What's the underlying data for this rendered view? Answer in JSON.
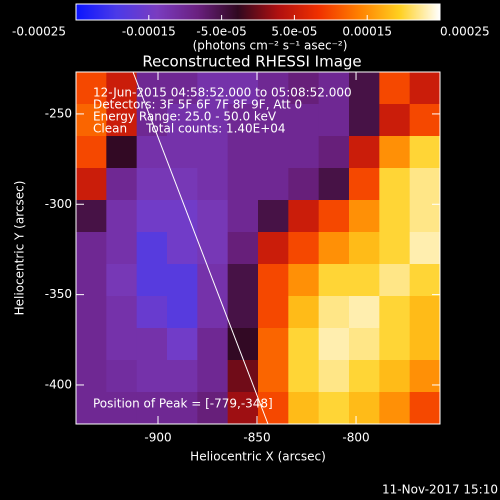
{
  "chart_data": {
    "type": "heatmap",
    "title": "Reconstructed RHESSI Image",
    "colorbar_label": "(photons cm⁻² s⁻¹ asec⁻²)",
    "x_label": "Heliocentric X (arcsec)",
    "y_label": "Heliocentric Y (arcsec)",
    "annotations": [
      "12-Jun-2015 04:58:52.000 to 05:08:52.000",
      "Detectors: 3F 5F 6F 7F 8F 9F, Att 0",
      "Energy Range: 25.0 - 50.0 keV",
      "Clean     Total counts: 1.40E+04"
    ],
    "peak_label": "Position of Peak = [-779,-348]",
    "timestamp": "11-Nov-2017 15:10",
    "xlim": [
      -941.4,
      -757.6
    ],
    "ylim": [
      -421.6,
      -226.8
    ],
    "xticks": [
      -900,
      -850,
      -800
    ],
    "yticks": [
      -250,
      -300,
      -350,
      -400
    ],
    "zlim": [
      -0.00025,
      0.00025
    ],
    "zticks": [
      -0.00025,
      -0.00015,
      {
        "value": -5e-05,
        "label": "-5.0e-05"
      },
      {
        "value": 5e-05,
        "label": "5.0e-05"
      },
      0.00015,
      0.00025
    ],
    "colormap": [
      "#0a14ff",
      "#4b3ae8",
      "#7a3cc0",
      "#6a2080",
      "#300820",
      "#b01010",
      "#f03000",
      "#ff8000",
      "#ffd020",
      "#ffffff"
    ],
    "z": [
      [
        0.0001,
        5e-05,
        -0.0001,
        -0.0001,
        -0.00012,
        -0.00012,
        -0.0001,
        -8e-05,
        -0.0001,
        -5e-05,
        0.0001,
        5e-05
      ],
      [
        0.00012,
        5e-05,
        -0.0001,
        -0.00012,
        -0.00012,
        -0.0001,
        -0.0001,
        -0.0001,
        -0.0001,
        -5e-05,
        5e-05,
        0.0001
      ],
      [
        0.0001,
        -3e-05,
        -0.00012,
        -0.00012,
        -0.00012,
        -0.0001,
        -0.0001,
        -0.0001,
        -8e-05,
        5e-05,
        0.00015,
        0.0002
      ],
      [
        5e-05,
        -0.0001,
        -0.00013,
        -0.00013,
        -0.00012,
        -0.0001,
        -0.0001,
        -8e-05,
        -5e-05,
        0.0001,
        0.0002,
        0.00022
      ],
      [
        -5e-05,
        -0.00012,
        -0.00015,
        -0.00015,
        -0.00013,
        -0.0001,
        -5e-05,
        5e-05,
        0.0001,
        0.00015,
        0.0002,
        0.00022
      ],
      [
        -0.0001,
        -0.00012,
        -0.00018,
        -0.00015,
        -0.00013,
        -8e-05,
        5e-05,
        0.0001,
        0.00015,
        0.00018,
        0.0002,
        0.00023
      ],
      [
        -0.0001,
        -0.00013,
        -0.00018,
        -0.00018,
        -0.00012,
        -5e-05,
        0.0001,
        0.00015,
        0.0002,
        0.0002,
        0.00022,
        0.0002
      ],
      [
        -0.0001,
        -0.00012,
        -0.00016,
        -0.00018,
        -0.00012,
        -5e-05,
        0.0001,
        0.00018,
        0.00022,
        0.00023,
        0.0002,
        0.00018
      ],
      [
        -0.0001,
        -0.00012,
        -0.00012,
        -0.00015,
        -0.0001,
        -3e-05,
        0.00012,
        0.0002,
        0.00023,
        0.00022,
        0.0002,
        0.00018
      ],
      [
        -0.0001,
        -0.00011,
        -0.00012,
        -0.00012,
        -0.0001,
        0,
        0.00012,
        0.0002,
        0.00022,
        0.0002,
        0.00018,
        0.00015
      ],
      [
        -0.0001,
        -0.0001,
        -0.0001,
        -0.0001,
        -8e-05,
        2e-05,
        0.0001,
        0.00018,
        0.0002,
        0.00018,
        0.00015,
        0.0001
      ]
    ]
  }
}
